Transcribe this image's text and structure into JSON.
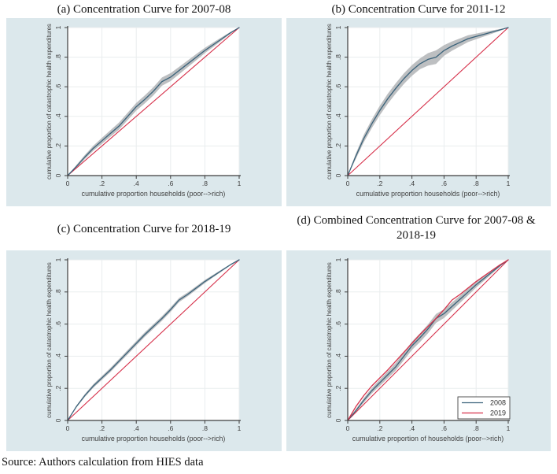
{
  "source_note": "Source: Authors calculation from HIES data",
  "colors": {
    "region_background": "#dce8ec",
    "plot_background": "#ffffff",
    "gridline": "#e9edee",
    "axis": "#3d3d3d",
    "tick_text": "#404040",
    "navy_curve": "#3a627a",
    "red_line": "#d6304a",
    "ci_band": "#b6b8ba",
    "title_text": "#141414"
  },
  "chart_data": [
    {
      "id": "a",
      "type": "line",
      "title": "(a) Concentration Curve for 2007-08",
      "xlabel": "cumulative proportion households (poor-->rich)",
      "ylabel": "cumulative proportion of catastrophic health expenditures",
      "xlim": [
        0,
        1
      ],
      "ylim": [
        0,
        1
      ],
      "grid": true,
      "ticks": {
        "labels": [
          "0",
          ".2",
          ".4",
          ".6",
          ".8",
          "1"
        ],
        "values": [
          0,
          0.2,
          0.4,
          0.6,
          0.8,
          1
        ]
      },
      "series": [
        {
          "name": "concentration-curve-2007-08",
          "color": "#3a627a",
          "role": "curve",
          "x": [
            0,
            0.05,
            0.1,
            0.15,
            0.2,
            0.25,
            0.3,
            0.35,
            0.4,
            0.45,
            0.5,
            0.55,
            0.6,
            0.65,
            0.7,
            0.75,
            0.8,
            0.85,
            0.9,
            0.95,
            1
          ],
          "y": [
            0,
            0.06,
            0.125,
            0.185,
            0.235,
            0.285,
            0.335,
            0.4,
            0.465,
            0.515,
            0.57,
            0.635,
            0.665,
            0.71,
            0.755,
            0.8,
            0.845,
            0.885,
            0.925,
            0.965,
            1
          ],
          "ci_halfwidth": [
            0,
            0.01,
            0.014,
            0.017,
            0.02,
            0.022,
            0.024,
            0.025,
            0.026,
            0.027,
            0.028,
            0.028,
            0.027,
            0.025,
            0.023,
            0.021,
            0.018,
            0.015,
            0.011,
            0.006,
            0
          ]
        },
        {
          "name": "line-of-equality",
          "color": "#d6304a",
          "role": "equality",
          "x": [
            0,
            1
          ],
          "y": [
            0,
            1
          ]
        }
      ],
      "legend": null
    },
    {
      "id": "b",
      "type": "line",
      "title": "(b) Concentration Curve for 2011-12",
      "xlabel": "cumulative proportion households (poor-->rich)",
      "ylabel": "cumulative proportion of catastrophic health expenditures",
      "xlim": [
        0,
        1
      ],
      "ylim": [
        0,
        1
      ],
      "grid": true,
      "ticks": {
        "labels": [
          "0",
          ".2",
          ".4",
          ".6",
          ".8",
          "1"
        ],
        "values": [
          0,
          0.2,
          0.4,
          0.6,
          0.8,
          1
        ]
      },
      "series": [
        {
          "name": "concentration-curve-2011-12",
          "color": "#3a627a",
          "role": "curve",
          "x": [
            0,
            0.05,
            0.1,
            0.15,
            0.2,
            0.25,
            0.3,
            0.35,
            0.4,
            0.45,
            0.5,
            0.55,
            0.6,
            0.65,
            0.7,
            0.75,
            0.8,
            0.85,
            0.9,
            0.95,
            1
          ],
          "y": [
            0,
            0.13,
            0.25,
            0.35,
            0.44,
            0.52,
            0.59,
            0.655,
            0.71,
            0.755,
            0.785,
            0.8,
            0.845,
            0.875,
            0.9,
            0.925,
            0.94,
            0.955,
            0.97,
            0.985,
            1
          ],
          "ci_halfwidth": [
            0,
            0.018,
            0.025,
            0.029,
            0.032,
            0.034,
            0.035,
            0.036,
            0.036,
            0.036,
            0.042,
            0.046,
            0.036,
            0.031,
            0.027,
            0.023,
            0.019,
            0.015,
            0.011,
            0.006,
            0
          ]
        },
        {
          "name": "line-of-equality",
          "color": "#d6304a",
          "role": "equality",
          "x": [
            0,
            1
          ],
          "y": [
            0,
            1
          ]
        }
      ],
      "legend": null
    },
    {
      "id": "c",
      "type": "line",
      "title": "(c) Concentration Curve for 2018-19",
      "xlabel": "cumulative proportion households (poor-->rich)",
      "ylabel": "cumulative proportion of catastrophic health expenditures",
      "xlim": [
        0,
        1
      ],
      "ylim": [
        0,
        1
      ],
      "grid": true,
      "ticks": {
        "labels": [
          "0",
          ".2",
          ".4",
          ".6",
          ".8",
          "1"
        ],
        "values": [
          0,
          0.2,
          0.4,
          0.6,
          0.8,
          1
        ]
      },
      "series": [
        {
          "name": "concentration-curve-2018-19",
          "color": "#3a627a",
          "role": "curve",
          "x": [
            0,
            0.05,
            0.1,
            0.15,
            0.2,
            0.25,
            0.3,
            0.35,
            0.4,
            0.45,
            0.5,
            0.55,
            0.6,
            0.65,
            0.7,
            0.75,
            0.8,
            0.85,
            0.9,
            0.95,
            1
          ],
          "y": [
            0,
            0.085,
            0.155,
            0.215,
            0.265,
            0.315,
            0.37,
            0.425,
            0.48,
            0.535,
            0.585,
            0.635,
            0.69,
            0.75,
            0.785,
            0.825,
            0.865,
            0.9,
            0.935,
            0.97,
            1
          ],
          "ci_halfwidth": [
            0,
            0.006,
            0.009,
            0.011,
            0.012,
            0.013,
            0.013,
            0.014,
            0.014,
            0.014,
            0.014,
            0.014,
            0.014,
            0.013,
            0.012,
            0.011,
            0.01,
            0.008,
            0.006,
            0.004,
            0
          ]
        },
        {
          "name": "line-of-equality",
          "color": "#d6304a",
          "role": "equality",
          "x": [
            0,
            1
          ],
          "y": [
            0,
            1
          ]
        }
      ],
      "legend": null
    },
    {
      "id": "d",
      "type": "line",
      "title": "(d) Combined Concentration Curve for 2007-08 & 2018-19",
      "xlabel": "cumulative proportion of households (poor-->rich)",
      "ylabel": "cumulative proportion of catastrophic health expenditures",
      "xlim": [
        0,
        1
      ],
      "ylim": [
        0,
        1
      ],
      "grid": true,
      "ticks": {
        "labels": [
          "0",
          ".2",
          ".4",
          ".6",
          ".8",
          "1"
        ],
        "values": [
          0,
          0.2,
          0.4,
          0.6,
          0.8,
          1
        ]
      },
      "series": [
        {
          "name": "concentration-curve-2008",
          "color": "#3a627a",
          "role": "curve",
          "x": [
            0,
            0.05,
            0.1,
            0.15,
            0.2,
            0.25,
            0.3,
            0.35,
            0.4,
            0.45,
            0.5,
            0.55,
            0.6,
            0.65,
            0.7,
            0.75,
            0.8,
            0.85,
            0.9,
            0.95,
            1
          ],
          "y": [
            0,
            0.06,
            0.125,
            0.185,
            0.235,
            0.285,
            0.335,
            0.4,
            0.465,
            0.515,
            0.57,
            0.635,
            0.665,
            0.71,
            0.755,
            0.8,
            0.845,
            0.885,
            0.925,
            0.965,
            1
          ],
          "ci_halfwidth": [
            0,
            0.01,
            0.014,
            0.017,
            0.02,
            0.022,
            0.024,
            0.025,
            0.026,
            0.027,
            0.028,
            0.028,
            0.027,
            0.025,
            0.023,
            0.021,
            0.018,
            0.015,
            0.011,
            0.006,
            0
          ]
        },
        {
          "name": "concentration-curve-2019",
          "color": "#d6304a",
          "role": "curve",
          "x": [
            0,
            0.05,
            0.1,
            0.15,
            0.2,
            0.25,
            0.3,
            0.35,
            0.4,
            0.45,
            0.5,
            0.55,
            0.6,
            0.65,
            0.7,
            0.75,
            0.8,
            0.85,
            0.9,
            0.95,
            1
          ],
          "y": [
            0,
            0.085,
            0.155,
            0.215,
            0.265,
            0.315,
            0.37,
            0.425,
            0.48,
            0.535,
            0.585,
            0.635,
            0.69,
            0.75,
            0.785,
            0.825,
            0.865,
            0.9,
            0.935,
            0.97,
            1
          ]
        },
        {
          "name": "line-of-equality",
          "color": "#d6304a",
          "role": "equality",
          "x": [
            0,
            1
          ],
          "y": [
            0,
            1
          ]
        }
      ],
      "legend": {
        "position": "bottom-right",
        "entries": [
          {
            "label": "2008",
            "color": "#3a627a"
          },
          {
            "label": "2019",
            "color": "#d6304a"
          }
        ]
      }
    }
  ]
}
